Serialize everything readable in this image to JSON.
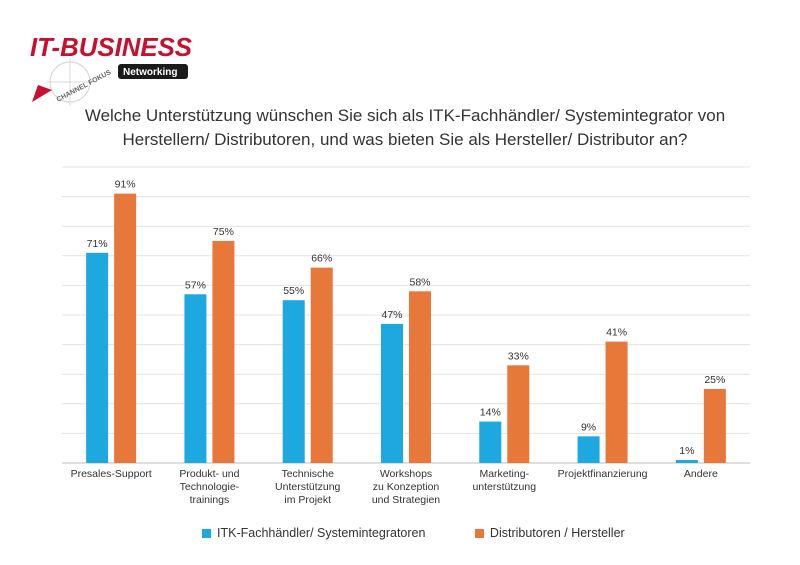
{
  "brand": {
    "name": "IT-BUSINESS",
    "subtitle": "Networking",
    "arc_text": "CHANNEL FOKUS",
    "colors": {
      "red": "#c8102e",
      "dark": "#1a1a1a"
    }
  },
  "chart_data": {
    "type": "bar",
    "title_lines": [
      "Welche Unterstützung wünschen Sie sich als ITK-Fachhändler/ Systemintegrator von",
      "Herstellern/ Distributoren, und was bieten Sie als Hersteller/ Distributor an?"
    ],
    "categories": [
      [
        "Presales-Support"
      ],
      [
        "Produkt- und",
        "Technologie-",
        "trainings"
      ],
      [
        "Technische",
        "Unterstützung",
        "im Projekt"
      ],
      [
        "Workshops",
        "zu Konzeption",
        "und Strategien"
      ],
      [
        "Marketing-",
        "unterstützung"
      ],
      [
        "Projektfinanzierung"
      ],
      [
        "Andere"
      ]
    ],
    "series": [
      {
        "name": "ITK-Fachhändler/ Systemintegratoren",
        "color": "#1ea8e0",
        "values": [
          71,
          57,
          55,
          47,
          14,
          9,
          1
        ]
      },
      {
        "name": "Distributoren / Hersteller",
        "color": "#e8773a",
        "values": [
          91,
          75,
          66,
          58,
          33,
          41,
          25
        ]
      }
    ],
    "value_suffix": "%",
    "ylim": [
      0,
      100
    ],
    "grid": true,
    "gridline_step": 10,
    "legend_position": "bottom"
  }
}
